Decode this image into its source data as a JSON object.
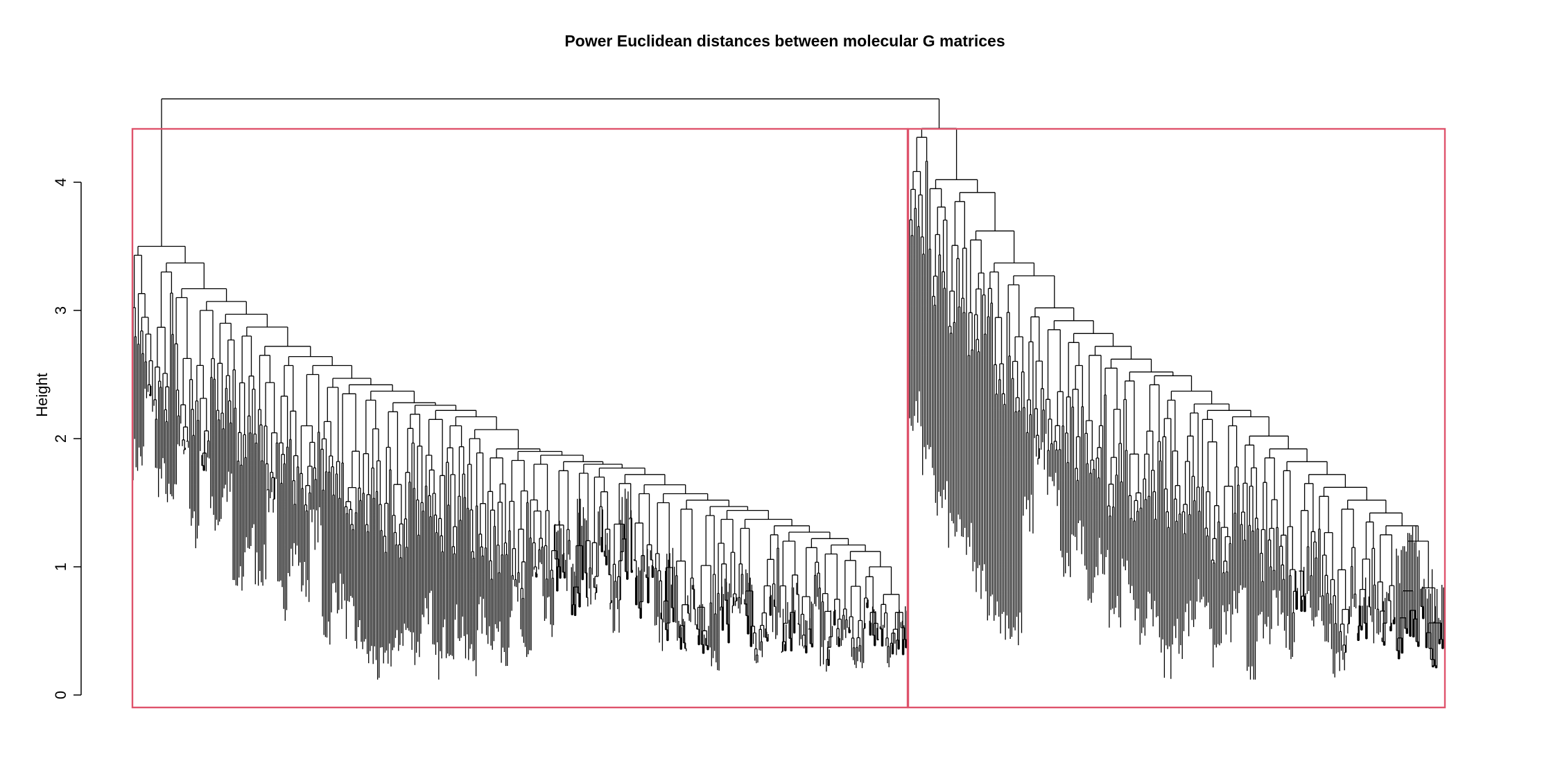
{
  "chart_data": {
    "type": "dendrogram",
    "title": "Power Euclidean distances between molecular G matrices",
    "xlabel": "",
    "ylabel": "Height",
    "ylim": [
      0,
      4.6
    ],
    "y_ticks": [
      0,
      1,
      2,
      3,
      4
    ],
    "y_tick_labels": [
      "0",
      "1",
      "2",
      "3",
      "4"
    ],
    "grid": false,
    "root_merge_height": 4.65,
    "cluster_cut_height": 4.45,
    "clusters": [
      {
        "cluster": 1,
        "rect_color": "#DF536B",
        "merge_heights": [
          3.48,
          3.35,
          3.15,
          3.05,
          2.95,
          2.85,
          2.7,
          2.62,
          2.55,
          2.45,
          2.4,
          2.35,
          2.26,
          2.24,
          2.2,
          2.15,
          2.05,
          1.9,
          1.88,
          1.85,
          1.8,
          1.78,
          1.75,
          1.7,
          1.62,
          1.55,
          1.5,
          1.45,
          1.42,
          1.35,
          1.3,
          1.25,
          1.2,
          1.15,
          1.1,
          1.05
        ],
        "leaf_heights": [
          1.85,
          2.3,
          1.7,
          1.5,
          2.0,
          1.3,
          1.9,
          1.4,
          1.6,
          0.85,
          1.2,
          1.0,
          1.55,
          0.75,
          1.1,
          0.9,
          1.3,
          0.55,
          0.8,
          0.6,
          0.45,
          0.3,
          0.2,
          0.35,
          0.5,
          0.4,
          0.7,
          0.25,
          0.45,
          0.55,
          0.3,
          0.6,
          0.5,
          0.4,
          0.75,
          0.35,
          0.9,
          0.6,
          1.2,
          0.95,
          1.4,
          0.8,
          1.3,
          0.6,
          1.5,
          0.9,
          1.1,
          0.5,
          1.0,
          0.45,
          0.7,
          0.55,
          0.35,
          0.8,
          0.6,
          0.9,
          0.4,
          0.65,
          0.5,
          0.75,
          0.45,
          0.6,
          0.3,
          0.55,
          0.4,
          0.25,
          0.65,
          0.5,
          0.35,
          0.7
        ]
      },
      {
        "cluster": 2,
        "rect_color": "#DF536B",
        "merge_heights": [
          4.4,
          4.0,
          3.9,
          3.6,
          3.35,
          3.25,
          3.0,
          2.9,
          2.8,
          2.7,
          2.6,
          2.5,
          2.47,
          2.35,
          2.25,
          2.2,
          2.15,
          2.0,
          1.9,
          1.8,
          1.7,
          1.6,
          1.5,
          1.4,
          1.3,
          1.25
        ],
        "leaf_heights": [
          2.2,
          1.8,
          1.5,
          1.3,
          1.2,
          0.9,
          0.75,
          0.6,
          0.5,
          1.4,
          1.9,
          1.6,
          1.0,
          1.2,
          0.85,
          1.1,
          0.7,
          0.9,
          0.5,
          0.7,
          0.3,
          0.45,
          0.6,
          0.8,
          0.35,
          0.55,
          0.7,
          0.25,
          0.5,
          0.65,
          0.45,
          0.9,
          0.7,
          0.5,
          0.3,
          0.6,
          0.8,
          0.55,
          0.7,
          1.0,
          1.2,
          0.9,
          0.7
        ]
      }
    ]
  }
}
